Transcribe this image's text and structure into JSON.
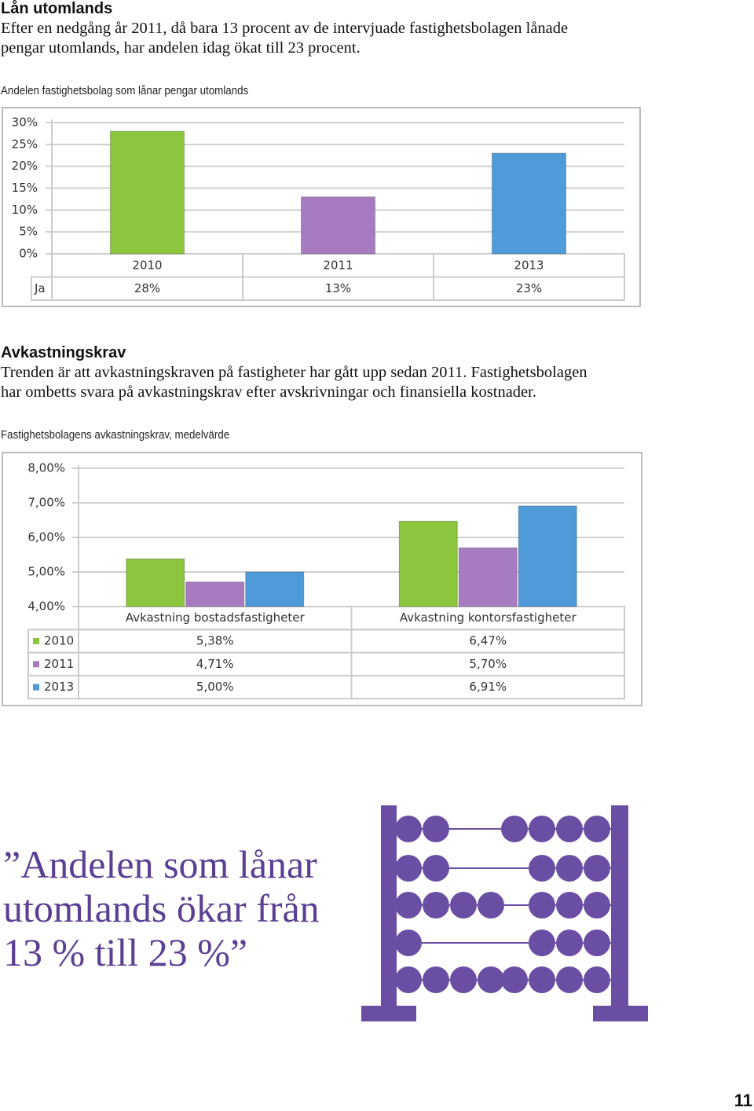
{
  "section1": {
    "heading": "Lån utomlands",
    "body_lines": [
      "Efter en nedgång år 2011, då bara 13 procent av de intervjuade fastighetsbolagen lånade",
      "pengar utomlands, har andelen idag ökat till 23 procent."
    ],
    "caption": "Andelen fastighetsbolag som lånar pengar utomlands"
  },
  "section2": {
    "heading": "Avkastningskrav",
    "body_lines": [
      "Trenden är att avkastningskraven på fastigheter har gått upp sedan 2011. Fastighetsbolagen",
      "har ombetts svara på avkastningskrav efter avskrivningar och finansiella kostnader."
    ],
    "caption": "Fastighetsbolagens avkastningskrav, medelvärde"
  },
  "chart_data": [
    {
      "type": "bar",
      "categories": [
        "2010",
        "2011",
        "2013"
      ],
      "colors": [
        "#8cc63f",
        "#a77bc0",
        "#4f9ad8"
      ],
      "series": [
        {
          "name": "Ja",
          "values": [
            28,
            13,
            23
          ],
          "value_labels": [
            "28%",
            "13%",
            "23%"
          ]
        }
      ],
      "ylim": [
        0,
        30
      ],
      "yticks": [
        {
          "value": 0,
          "label": "0%"
        },
        {
          "value": 5,
          "label": "5%"
        },
        {
          "value": 10,
          "label": "10%"
        },
        {
          "value": 15,
          "label": "15%"
        },
        {
          "value": 20,
          "label": "20%"
        },
        {
          "value": 25,
          "label": "25%"
        },
        {
          "value": 30,
          "label": "30%"
        }
      ],
      "grid": true
    },
    {
      "type": "bar",
      "categories": [
        "Avkastning bostadsfastigheter",
        "Avkastning kontorsfastigheter"
      ],
      "series": [
        {
          "name": "2010",
          "color": "#8cc63f",
          "values": [
            5.38,
            6.47
          ],
          "value_labels": [
            "5,38%",
            "6,47%"
          ]
        },
        {
          "name": "2011",
          "color": "#a77bc0",
          "values": [
            4.71,
            5.7
          ],
          "value_labels": [
            "4,71%",
            "5,70%"
          ]
        },
        {
          "name": "2013",
          "color": "#4f9ad8",
          "values": [
            5.0,
            6.91
          ],
          "value_labels": [
            "5,00%",
            "6,91%"
          ]
        }
      ],
      "ylim": [
        4,
        8
      ],
      "yticks": [
        {
          "value": 4,
          "label": "4,00%"
        },
        {
          "value": 5,
          "label": "5,00%"
        },
        {
          "value": 6,
          "label": "6,00%"
        },
        {
          "value": 7,
          "label": "7,00%"
        },
        {
          "value": 8,
          "label": "8,00%"
        }
      ],
      "grid": true
    }
  ],
  "quote_lines": [
    "”Andelen som lånar",
    "utomlands ökar från",
    "13 % till 23 %”"
  ],
  "page_number": "11"
}
